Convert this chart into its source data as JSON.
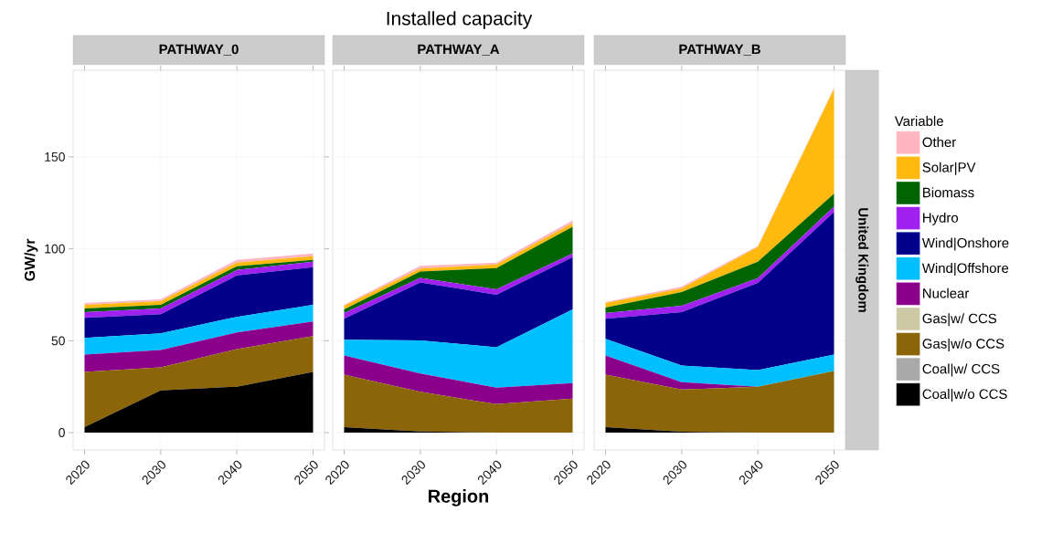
{
  "chart_data": [
    {
      "type": "area",
      "stacked": true,
      "subtitle": "PATHWAY_0",
      "ylabel": "GW/yr",
      "x": [
        2020,
        2030,
        2040,
        2050
      ],
      "xlim": [
        2018.5,
        2051.5
      ],
      "ylim": [
        -9.4,
        197.1
      ],
      "xticks": [
        2020,
        2030,
        2040,
        2050
      ],
      "yticks": [
        0,
        50,
        100,
        150
      ],
      "grid": true,
      "series": [
        {
          "color": "#000000",
          "values": [
            3,
            23,
            25,
            33
          ]
        },
        {
          "color": "#a9a9a9",
          "values": [
            null,
            null,
            null,
            null
          ]
        },
        {
          "color": "#8b6508",
          "values": [
            30,
            12.5,
            20.5,
            19.5
          ]
        },
        {
          "color": "#cdc9a5",
          "values": [
            null,
            null,
            null,
            null
          ]
        },
        {
          "color": "#8b008b",
          "values": [
            9.5,
            9.5,
            9,
            8
          ]
        },
        {
          "color": "#00bfff",
          "values": [
            9,
            9,
            8.5,
            9
          ]
        },
        {
          "color": "#00008b",
          "values": [
            11,
            10.5,
            22.5,
            20.5
          ]
        },
        {
          "color": "#a020f0",
          "values": [
            3,
            3,
            3,
            3
          ]
        },
        {
          "color": "#006400",
          "values": [
            2,
            2,
            2,
            1
          ]
        },
        {
          "color": "#ffb90f",
          "values": [
            2,
            2,
            2,
            2
          ]
        },
        {
          "color": "#ffb6c1",
          "values": [
            1,
            1,
            1.5,
            1.5
          ]
        }
      ]
    },
    {
      "type": "area",
      "stacked": true,
      "title": "Installed capacity",
      "subtitle": "PATHWAY_A",
      "xlabel": "Region",
      "x": [
        2020,
        2030,
        2040,
        2050
      ],
      "xlim": [
        2018.5,
        2051.5
      ],
      "ylim": [
        -9.4,
        197.1
      ],
      "xticks": [
        2020,
        2030,
        2040,
        2050
      ],
      "yticks": [
        0,
        50,
        100,
        150
      ],
      "grid": true,
      "tick_labels": "x",
      "series": [
        {
          "color": "#000000",
          "values": [
            3,
            0.7,
            0,
            0
          ]
        },
        {
          "color": "#a9a9a9",
          "values": [
            null,
            null,
            null,
            null
          ]
        },
        {
          "color": "#8b6508",
          "values": [
            28.5,
            21.5,
            15.5,
            18.5
          ]
        },
        {
          "color": "#cdc9a5",
          "values": [
            null,
            null,
            null,
            null
          ]
        },
        {
          "color": "#8b008b",
          "values": [
            10.5,
            10,
            9,
            8.5
          ]
        },
        {
          "color": "#00bfff",
          "values": [
            8.5,
            18,
            22,
            40
          ]
        },
        {
          "color": "#00008b",
          "values": [
            11.5,
            31.5,
            28.5,
            28.5
          ]
        },
        {
          "color": "#a020f0",
          "values": [
            3,
            2.5,
            3,
            2
          ]
        },
        {
          "color": "#006400",
          "values": [
            2,
            3.5,
            11.5,
            14.5
          ]
        },
        {
          "color": "#ffb90f",
          "values": [
            2,
            1.5,
            2,
            2
          ]
        },
        {
          "color": "#ffb6c1",
          "values": [
            0.5,
            1.5,
            1,
            1.5
          ]
        }
      ]
    },
    {
      "type": "area",
      "stacked": true,
      "subtitle": "PATHWAY_B",
      "y2label": "United Kingdom",
      "legend": "right",
      "legend_title": "Variable",
      "x": [
        2020,
        2030,
        2040,
        2050
      ],
      "xlim": [
        2018.5,
        2051.5
      ],
      "ylim": [
        -9.4,
        197.1
      ],
      "xticks": [
        2020,
        2030,
        2040,
        2050
      ],
      "yticks": [
        0,
        50,
        100,
        150
      ],
      "grid": true,
      "tick_labels": "x",
      "series": [
        {
          "name": "Coal|w/o CCS",
          "color": "#000000",
          "values": [
            3,
            0.5,
            0,
            0
          ]
        },
        {
          "name": "Coal|w/ CCS",
          "color": "#a9a9a9",
          "values": [
            null,
            null,
            null,
            null
          ]
        },
        {
          "name": "Gas|w/o CCS",
          "color": "#8b6508",
          "values": [
            28.5,
            23,
            25,
            33.5
          ]
        },
        {
          "name": "Gas|w/ CCS",
          "color": "#cdc9a5",
          "values": [
            null,
            null,
            null,
            null
          ]
        },
        {
          "name": "Nuclear",
          "color": "#8b008b",
          "values": [
            10.5,
            4,
            0,
            0
          ]
        },
        {
          "name": "Wind|Offshore",
          "color": "#00bfff",
          "values": [
            9,
            9,
            9,
            9
          ]
        },
        {
          "name": "Wind|Onshore",
          "color": "#00008b",
          "values": [
            11,
            29,
            47.5,
            77.5
          ]
        },
        {
          "name": "Hydro",
          "color": "#a020f0",
          "values": [
            3,
            3.5,
            2.5,
            3
          ]
        },
        {
          "name": "Biomass",
          "color": "#006400",
          "values": [
            3,
            7.5,
            9,
            7
          ]
        },
        {
          "name": "Solar|PV",
          "color": "#ffb90f",
          "values": [
            2.5,
            2,
            8,
            57
          ]
        },
        {
          "name": "Other",
          "color": "#ffb6c1",
          "values": [
            0.5,
            1,
            0.5,
            0.5
          ]
        }
      ]
    }
  ]
}
